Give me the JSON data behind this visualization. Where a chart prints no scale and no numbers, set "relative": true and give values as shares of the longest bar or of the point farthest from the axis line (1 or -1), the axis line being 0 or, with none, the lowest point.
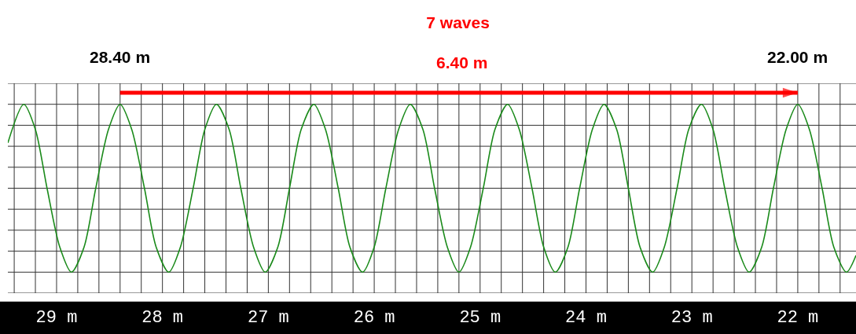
{
  "chart_data": {
    "type": "line",
    "title": "7 waves",
    "relative": true,
    "grid": true,
    "legend": false,
    "tick_labels": "x",
    "xlim": [
      29.46,
      21.45
    ],
    "xticks": [
      {
        "value": 29.4,
        "label": null
      },
      {
        "value": 29.2,
        "label": null
      },
      {
        "value": 29,
        "label": "29 m"
      },
      {
        "value": 28.8,
        "label": null
      },
      {
        "value": 28.6,
        "label": null
      },
      {
        "value": 28.4,
        "label": null
      },
      {
        "value": 28.2,
        "label": null
      },
      {
        "value": 28,
        "label": "28 m"
      },
      {
        "value": 27.8,
        "label": null
      },
      {
        "value": 27.6,
        "label": null
      },
      {
        "value": 27.4,
        "label": null
      },
      {
        "value": 27.2,
        "label": null
      },
      {
        "value": 27,
        "label": "27 m"
      },
      {
        "value": 26.8,
        "label": null
      },
      {
        "value": 26.6,
        "label": null
      },
      {
        "value": 26.4,
        "label": null
      },
      {
        "value": 26.2,
        "label": null
      },
      {
        "value": 26,
        "label": "26 m"
      },
      {
        "value": 25.8,
        "label": null
      },
      {
        "value": 25.6,
        "label": null
      },
      {
        "value": 25.4,
        "label": null
      },
      {
        "value": 25.2,
        "label": null
      },
      {
        "value": 25,
        "label": "25 m"
      },
      {
        "value": 24.8,
        "label": null
      },
      {
        "value": 24.6,
        "label": null
      },
      {
        "value": 24.4,
        "label": null
      },
      {
        "value": 24.2,
        "label": null
      },
      {
        "value": 24,
        "label": "24 m"
      },
      {
        "value": 23.8,
        "label": null
      },
      {
        "value": 23.6,
        "label": null
      },
      {
        "value": 23.4,
        "label": null
      },
      {
        "value": 23.2,
        "label": null
      },
      {
        "value": 23,
        "label": "23 m"
      },
      {
        "value": 22.8,
        "label": null
      },
      {
        "value": 22.6,
        "label": null
      },
      {
        "value": 22.4,
        "label": null
      },
      {
        "value": 22.2,
        "label": null
      },
      {
        "value": 22,
        "label": "22 m"
      },
      {
        "value": 21.8,
        "label": null
      },
      {
        "value": 21.6,
        "label": null
      }
    ],
    "annotations": [
      "6.40 m",
      {
        "text": "28.40 m",
        "x": 28.4,
        "y": 1
      },
      {
        "text": "22.00 m",
        "x": 22.0,
        "y": 1
      }
    ],
    "x": [
      29.46,
      29.31,
      29.2,
      29.09,
      28.97,
      28.86,
      28.74,
      28.63,
      28.51,
      28.4,
      28.29,
      28.17,
      28.06,
      27.94,
      27.83,
      27.71,
      27.6,
      27.49,
      27.37,
      27.26,
      27.14,
      27.03,
      26.91,
      26.8,
      26.69,
      26.57,
      26.46,
      26.34,
      26.23,
      26.11,
      26.0,
      25.89,
      25.77,
      25.66,
      25.54,
      25.43,
      25.31,
      25.2,
      25.09,
      24.97,
      24.86,
      24.74,
      24.63,
      24.51,
      24.4,
      24.29,
      24.17,
      24.06,
      23.94,
      23.83,
      23.71,
      23.6,
      23.49,
      23.37,
      23.26,
      23.14,
      23.03,
      22.91,
      22.8,
      22.69,
      22.57,
      22.46,
      22.34,
      22.23,
      22.11,
      22.0,
      21.89,
      21.77,
      21.66,
      21.54,
      21.45
    ],
    "series": [
      {
        "color": "#1a8a1a",
        "values": [
          0.77,
          1,
          0.85,
          0.5,
          0.15,
          0,
          0.15,
          0.5,
          0.85,
          1,
          0.85,
          0.5,
          0.15,
          0,
          0.15,
          0.5,
          0.85,
          1,
          0.85,
          0.5,
          0.15,
          0,
          0.15,
          0.5,
          0.85,
          1,
          0.85,
          0.5,
          0.15,
          0,
          0.15,
          0.5,
          0.85,
          1,
          0.85,
          0.5,
          0.15,
          0,
          0.15,
          0.5,
          0.85,
          1,
          0.85,
          0.5,
          0.15,
          0,
          0.15,
          0.5,
          0.85,
          1,
          0.85,
          0.5,
          0.15,
          0,
          0.15,
          0.5,
          0.85,
          1,
          0.85,
          0.5,
          0.15,
          0,
          0.15,
          0.5,
          0.85,
          1,
          0.85,
          0.5,
          0.15,
          0,
          0.1
        ]
      }
    ]
  }
}
